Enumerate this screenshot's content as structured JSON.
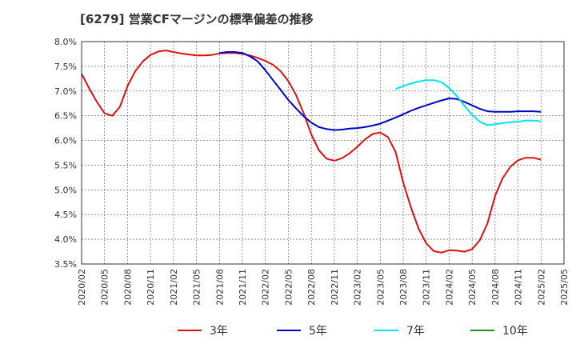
{
  "chart_data": {
    "type": "line",
    "title": "[6279]  営業CFマージンの標準偏差の推移",
    "xlabel": "",
    "ylabel": "",
    "ylim": [
      3.5,
      8.0
    ],
    "y_ticks": [
      "3.5%",
      "4.0%",
      "4.5%",
      "5.0%",
      "5.5%",
      "6.0%",
      "6.5%",
      "7.0%",
      "7.5%",
      "8.0%"
    ],
    "x_ticks": [
      "2020/02",
      "2020/05",
      "2020/08",
      "2020/11",
      "2021/02",
      "2021/05",
      "2021/08",
      "2021/11",
      "2022/02",
      "2022/05",
      "2022/08",
      "2022/11",
      "2023/02",
      "2023/05",
      "2023/08",
      "2023/11",
      "2024/02",
      "2024/05",
      "2024/08",
      "2024/11",
      "2025/02",
      "2025/05"
    ],
    "grid": true,
    "legend_position": "bottom",
    "series": [
      {
        "name": "3年",
        "color": "#dd1111",
        "x": [
          "2020/02",
          "2020/03",
          "2020/04",
          "2020/05",
          "2020/06",
          "2020/07",
          "2020/08",
          "2020/09",
          "2020/10",
          "2020/11",
          "2020/12",
          "2021/01",
          "2021/02",
          "2021/03",
          "2021/04",
          "2021/05",
          "2021/06",
          "2021/07",
          "2021/08",
          "2021/09",
          "2021/10",
          "2021/11",
          "2021/12",
          "2022/01",
          "2022/02",
          "2022/03",
          "2022/04",
          "2022/05",
          "2022/06",
          "2022/07",
          "2022/08",
          "2022/09",
          "2022/10",
          "2022/11",
          "2022/12",
          "2023/01",
          "2023/02",
          "2023/03",
          "2023/04",
          "2023/05",
          "2023/06",
          "2023/07",
          "2023/08",
          "2023/09",
          "2023/10",
          "2023/11",
          "2023/12",
          "2024/01",
          "2024/02",
          "2024/03",
          "2024/04",
          "2024/05",
          "2024/06",
          "2024/07",
          "2024/08",
          "2024/09",
          "2024/10",
          "2024/11",
          "2024/12",
          "2025/01",
          "2025/02"
        ],
        "values": [
          7.35,
          7.05,
          6.78,
          6.55,
          6.5,
          6.68,
          7.1,
          7.4,
          7.6,
          7.73,
          7.8,
          7.82,
          7.79,
          7.76,
          7.74,
          7.72,
          7.72,
          7.73,
          7.76,
          7.77,
          7.77,
          7.75,
          7.72,
          7.67,
          7.61,
          7.53,
          7.4,
          7.2,
          6.92,
          6.55,
          6.12,
          5.8,
          5.63,
          5.59,
          5.64,
          5.74,
          5.87,
          6.02,
          6.13,
          6.16,
          6.07,
          5.77,
          5.15,
          4.65,
          4.22,
          3.92,
          3.76,
          3.73,
          3.78,
          3.77,
          3.75,
          3.8,
          3.98,
          4.32,
          4.88,
          5.24,
          5.47,
          5.6,
          5.65,
          5.65,
          5.61
        ]
      },
      {
        "name": "5年",
        "color": "#0000cc",
        "x": [
          "2021/08",
          "2021/09",
          "2021/10",
          "2021/11",
          "2021/12",
          "2022/01",
          "2022/02",
          "2022/03",
          "2022/04",
          "2022/05",
          "2022/06",
          "2022/07",
          "2022/08",
          "2022/09",
          "2022/10",
          "2022/11",
          "2022/12",
          "2023/01",
          "2023/02",
          "2023/03",
          "2023/04",
          "2023/05",
          "2023/06",
          "2023/07",
          "2023/08",
          "2023/09",
          "2023/10",
          "2023/11",
          "2023/12",
          "2024/01",
          "2024/02",
          "2024/03",
          "2024/04",
          "2024/05",
          "2024/06",
          "2024/07",
          "2024/08",
          "2024/09",
          "2024/10",
          "2024/11",
          "2024/12",
          "2025/01",
          "2025/02"
        ],
        "values": [
          7.77,
          7.79,
          7.79,
          7.77,
          7.7,
          7.6,
          7.42,
          7.22,
          7.02,
          6.82,
          6.65,
          6.49,
          6.36,
          6.27,
          6.23,
          6.21,
          6.22,
          6.24,
          6.25,
          6.27,
          6.3,
          6.34,
          6.4,
          6.46,
          6.53,
          6.6,
          6.66,
          6.71,
          6.76,
          6.81,
          6.85,
          6.84,
          6.78,
          6.71,
          6.64,
          6.59,
          6.58,
          6.58,
          6.58,
          6.59,
          6.59,
          6.59,
          6.58
        ]
      },
      {
        "name": "7年",
        "color": "#00e5ee",
        "x": [
          "2023/07",
          "2023/08",
          "2023/09",
          "2023/10",
          "2023/11",
          "2023/12",
          "2024/01",
          "2024/02",
          "2024/03",
          "2024/04",
          "2024/05",
          "2024/06",
          "2024/07",
          "2024/08",
          "2024/09",
          "2024/10",
          "2024/11",
          "2024/12",
          "2025/01",
          "2025/02"
        ],
        "values": [
          7.04,
          7.1,
          7.15,
          7.19,
          7.22,
          7.22,
          7.18,
          7.06,
          6.9,
          6.7,
          6.52,
          6.38,
          6.31,
          6.33,
          6.35,
          6.37,
          6.38,
          6.4,
          6.4,
          6.39
        ]
      },
      {
        "name": "10年",
        "color": "#228b22",
        "x": [],
        "values": []
      }
    ]
  }
}
